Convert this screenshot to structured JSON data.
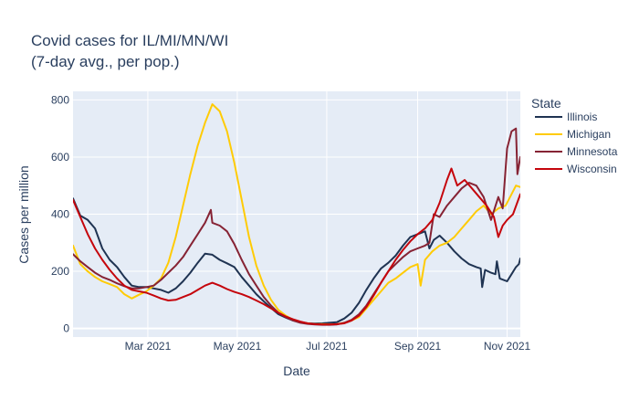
{
  "chart_data": {
    "type": "line",
    "title_lines": [
      "Covid cases for IL/MI/MN/WI",
      "(7-day avg., per pop.)"
    ],
    "xlabel": "Date",
    "ylabel": "Cases per million",
    "xlim": [
      "2021-01-09",
      "2021-11-10"
    ],
    "ylim": [
      -30,
      830
    ],
    "x_ticks": [
      {
        "date": "2021-03-01",
        "label": "Mar 2021"
      },
      {
        "date": "2021-05-01",
        "label": "May 2021"
      },
      {
        "date": "2021-07-01",
        "label": "Jul 2021"
      },
      {
        "date": "2021-09-01",
        "label": "Sep 2021"
      },
      {
        "date": "2021-11-01",
        "label": "Nov 2021"
      }
    ],
    "y_ticks": [
      0,
      200,
      400,
      600,
      800
    ],
    "legend": {
      "title": "State",
      "position": "right"
    },
    "grid": true,
    "plot_background": "#e5ecf6",
    "series": [
      {
        "name": "Illinois",
        "color": "#1f3352",
        "points": [
          [
            "2021-01-09",
            455
          ],
          [
            "2021-01-14",
            395
          ],
          [
            "2021-01-19",
            380
          ],
          [
            "2021-01-24",
            350
          ],
          [
            "2021-01-29",
            280
          ],
          [
            "2021-02-03",
            240
          ],
          [
            "2021-02-08",
            215
          ],
          [
            "2021-02-13",
            180
          ],
          [
            "2021-02-18",
            150
          ],
          [
            "2021-02-23",
            145
          ],
          [
            "2021-02-28",
            145
          ],
          [
            "2021-03-05",
            140
          ],
          [
            "2021-03-10",
            135
          ],
          [
            "2021-03-15",
            125
          ],
          [
            "2021-03-20",
            140
          ],
          [
            "2021-03-25",
            165
          ],
          [
            "2021-03-30",
            195
          ],
          [
            "2021-04-04",
            230
          ],
          [
            "2021-04-09",
            262
          ],
          [
            "2021-04-14",
            258
          ],
          [
            "2021-04-19",
            240
          ],
          [
            "2021-04-24",
            228
          ],
          [
            "2021-04-29",
            215
          ],
          [
            "2021-05-04",
            180
          ],
          [
            "2021-05-09",
            150
          ],
          [
            "2021-05-14",
            120
          ],
          [
            "2021-05-19",
            95
          ],
          [
            "2021-05-24",
            72
          ],
          [
            "2021-05-29",
            50
          ],
          [
            "2021-06-03",
            38
          ],
          [
            "2021-06-08",
            28
          ],
          [
            "2021-06-13",
            22
          ],
          [
            "2021-06-18",
            18
          ],
          [
            "2021-06-23",
            17
          ],
          [
            "2021-06-28",
            18
          ],
          [
            "2021-07-03",
            20
          ],
          [
            "2021-07-08",
            22
          ],
          [
            "2021-07-13",
            35
          ],
          [
            "2021-07-18",
            55
          ],
          [
            "2021-07-23",
            90
          ],
          [
            "2021-07-28",
            135
          ],
          [
            "2021-08-02",
            175
          ],
          [
            "2021-08-07",
            210
          ],
          [
            "2021-08-12",
            230
          ],
          [
            "2021-08-17",
            255
          ],
          [
            "2021-08-22",
            290
          ],
          [
            "2021-08-27",
            320
          ],
          [
            "2021-09-01",
            330
          ],
          [
            "2021-09-06",
            340
          ],
          [
            "2021-09-09",
            280
          ],
          [
            "2021-09-12",
            310
          ],
          [
            "2021-09-16",
            325
          ],
          [
            "2021-09-21",
            300
          ],
          [
            "2021-09-26",
            270
          ],
          [
            "2021-10-01",
            245
          ],
          [
            "2021-10-06",
            225
          ],
          [
            "2021-10-11",
            215
          ],
          [
            "2021-10-14",
            210
          ],
          [
            "2021-10-15",
            145
          ],
          [
            "2021-10-17",
            205
          ],
          [
            "2021-10-21",
            195
          ],
          [
            "2021-10-24",
            190
          ],
          [
            "2021-10-25",
            235
          ],
          [
            "2021-10-27",
            175
          ],
          [
            "2021-11-01",
            165
          ],
          [
            "2021-11-04",
            190
          ],
          [
            "2021-11-07",
            215
          ],
          [
            "2021-11-09",
            225
          ],
          [
            "2021-11-10",
            245
          ]
        ]
      },
      {
        "name": "Michigan",
        "color": "#ffcb05",
        "points": [
          [
            "2021-01-09",
            290
          ],
          [
            "2021-01-14",
            225
          ],
          [
            "2021-01-19",
            200
          ],
          [
            "2021-01-24",
            180
          ],
          [
            "2021-01-29",
            165
          ],
          [
            "2021-02-03",
            155
          ],
          [
            "2021-02-08",
            145
          ],
          [
            "2021-02-13",
            120
          ],
          [
            "2021-02-18",
            105
          ],
          [
            "2021-02-23",
            118
          ],
          [
            "2021-02-28",
            130
          ],
          [
            "2021-03-05",
            150
          ],
          [
            "2021-03-10",
            175
          ],
          [
            "2021-03-15",
            230
          ],
          [
            "2021-03-20",
            320
          ],
          [
            "2021-03-25",
            430
          ],
          [
            "2021-03-30",
            540
          ],
          [
            "2021-04-04",
            640
          ],
          [
            "2021-04-09",
            720
          ],
          [
            "2021-04-14",
            785
          ],
          [
            "2021-04-19",
            760
          ],
          [
            "2021-04-24",
            690
          ],
          [
            "2021-04-29",
            580
          ],
          [
            "2021-05-04",
            450
          ],
          [
            "2021-05-09",
            320
          ],
          [
            "2021-05-14",
            220
          ],
          [
            "2021-05-19",
            150
          ],
          [
            "2021-05-24",
            100
          ],
          [
            "2021-05-29",
            65
          ],
          [
            "2021-06-03",
            45
          ],
          [
            "2021-06-08",
            30
          ],
          [
            "2021-06-13",
            22
          ],
          [
            "2021-06-18",
            18
          ],
          [
            "2021-06-23",
            15
          ],
          [
            "2021-06-28",
            15
          ],
          [
            "2021-07-03",
            14
          ],
          [
            "2021-07-08",
            15
          ],
          [
            "2021-07-13",
            20
          ],
          [
            "2021-07-18",
            28
          ],
          [
            "2021-07-23",
            40
          ],
          [
            "2021-07-28",
            70
          ],
          [
            "2021-08-02",
            100
          ],
          [
            "2021-08-07",
            130
          ],
          [
            "2021-08-12",
            160
          ],
          [
            "2021-08-17",
            175
          ],
          [
            "2021-08-22",
            195
          ],
          [
            "2021-08-27",
            215
          ],
          [
            "2021-09-01",
            225
          ],
          [
            "2021-09-03",
            150
          ],
          [
            "2021-09-06",
            240
          ],
          [
            "2021-09-11",
            270
          ],
          [
            "2021-09-16",
            290
          ],
          [
            "2021-09-21",
            300
          ],
          [
            "2021-09-26",
            320
          ],
          [
            "2021-10-01",
            350
          ],
          [
            "2021-10-06",
            380
          ],
          [
            "2021-10-11",
            410
          ],
          [
            "2021-10-16",
            430
          ],
          [
            "2021-10-21",
            400
          ],
          [
            "2021-10-26",
            420
          ],
          [
            "2021-10-31",
            430
          ],
          [
            "2021-11-03",
            460
          ],
          [
            "2021-11-07",
            500
          ],
          [
            "2021-11-10",
            495
          ]
        ]
      },
      {
        "name": "Minnesota",
        "color": "#862334",
        "points": [
          [
            "2021-01-09",
            260
          ],
          [
            "2021-01-14",
            235
          ],
          [
            "2021-01-19",
            215
          ],
          [
            "2021-01-24",
            195
          ],
          [
            "2021-01-29",
            180
          ],
          [
            "2021-02-03",
            170
          ],
          [
            "2021-02-08",
            158
          ],
          [
            "2021-02-13",
            148
          ],
          [
            "2021-02-18",
            140
          ],
          [
            "2021-02-23",
            140
          ],
          [
            "2021-02-28",
            145
          ],
          [
            "2021-03-05",
            150
          ],
          [
            "2021-03-10",
            170
          ],
          [
            "2021-03-15",
            195
          ],
          [
            "2021-03-20",
            220
          ],
          [
            "2021-03-25",
            250
          ],
          [
            "2021-03-30",
            290
          ],
          [
            "2021-04-04",
            330
          ],
          [
            "2021-04-09",
            370
          ],
          [
            "2021-04-13",
            415
          ],
          [
            "2021-04-14",
            370
          ],
          [
            "2021-04-19",
            360
          ],
          [
            "2021-04-24",
            340
          ],
          [
            "2021-04-29",
            295
          ],
          [
            "2021-05-04",
            240
          ],
          [
            "2021-05-09",
            190
          ],
          [
            "2021-05-14",
            150
          ],
          [
            "2021-05-19",
            110
          ],
          [
            "2021-05-24",
            80
          ],
          [
            "2021-05-29",
            55
          ],
          [
            "2021-06-03",
            40
          ],
          [
            "2021-06-08",
            28
          ],
          [
            "2021-06-13",
            20
          ],
          [
            "2021-06-18",
            16
          ],
          [
            "2021-06-23",
            14
          ],
          [
            "2021-06-28",
            13
          ],
          [
            "2021-07-03",
            13
          ],
          [
            "2021-07-08",
            14
          ],
          [
            "2021-07-13",
            20
          ],
          [
            "2021-07-18",
            30
          ],
          [
            "2021-07-23",
            50
          ],
          [
            "2021-07-28",
            80
          ],
          [
            "2021-08-02",
            120
          ],
          [
            "2021-08-07",
            160
          ],
          [
            "2021-08-12",
            200
          ],
          [
            "2021-08-17",
            225
          ],
          [
            "2021-08-22",
            250
          ],
          [
            "2021-08-27",
            270
          ],
          [
            "2021-09-01",
            280
          ],
          [
            "2021-09-06",
            290
          ],
          [
            "2021-09-09",
            300
          ],
          [
            "2021-09-12",
            400
          ],
          [
            "2021-09-16",
            390
          ],
          [
            "2021-09-21",
            430
          ],
          [
            "2021-09-26",
            460
          ],
          [
            "2021-10-01",
            490
          ],
          [
            "2021-10-06",
            510
          ],
          [
            "2021-10-11",
            500
          ],
          [
            "2021-10-16",
            460
          ],
          [
            "2021-10-21",
            380
          ],
          [
            "2021-10-26",
            460
          ],
          [
            "2021-10-29",
            420
          ],
          [
            "2021-11-01",
            630
          ],
          [
            "2021-11-04",
            690
          ],
          [
            "2021-11-07",
            700
          ],
          [
            "2021-11-08",
            540
          ],
          [
            "2021-11-10",
            600
          ]
        ]
      },
      {
        "name": "Wisconsin",
        "color": "#c5050c",
        "points": [
          [
            "2021-01-09",
            450
          ],
          [
            "2021-01-14",
            390
          ],
          [
            "2021-01-19",
            330
          ],
          [
            "2021-01-24",
            280
          ],
          [
            "2021-01-29",
            240
          ],
          [
            "2021-02-03",
            205
          ],
          [
            "2021-02-08",
            175
          ],
          [
            "2021-02-13",
            150
          ],
          [
            "2021-02-18",
            135
          ],
          [
            "2021-02-23",
            130
          ],
          [
            "2021-02-28",
            125
          ],
          [
            "2021-03-05",
            115
          ],
          [
            "2021-03-10",
            105
          ],
          [
            "2021-03-15",
            98
          ],
          [
            "2021-03-20",
            100
          ],
          [
            "2021-03-25",
            110
          ],
          [
            "2021-03-30",
            120
          ],
          [
            "2021-04-04",
            135
          ],
          [
            "2021-04-09",
            150
          ],
          [
            "2021-04-14",
            160
          ],
          [
            "2021-04-19",
            150
          ],
          [
            "2021-04-24",
            138
          ],
          [
            "2021-04-29",
            128
          ],
          [
            "2021-05-04",
            120
          ],
          [
            "2021-05-09",
            110
          ],
          [
            "2021-05-14",
            98
          ],
          [
            "2021-05-19",
            85
          ],
          [
            "2021-05-24",
            70
          ],
          [
            "2021-05-29",
            55
          ],
          [
            "2021-06-03",
            42
          ],
          [
            "2021-06-08",
            32
          ],
          [
            "2021-06-13",
            24
          ],
          [
            "2021-06-18",
            18
          ],
          [
            "2021-06-23",
            15
          ],
          [
            "2021-06-28",
            14
          ],
          [
            "2021-07-03",
            14
          ],
          [
            "2021-07-08",
            15
          ],
          [
            "2021-07-13",
            18
          ],
          [
            "2021-07-18",
            28
          ],
          [
            "2021-07-23",
            45
          ],
          [
            "2021-07-28",
            75
          ],
          [
            "2021-08-02",
            115
          ],
          [
            "2021-08-07",
            160
          ],
          [
            "2021-08-12",
            200
          ],
          [
            "2021-08-17",
            240
          ],
          [
            "2021-08-22",
            275
          ],
          [
            "2021-08-27",
            305
          ],
          [
            "2021-09-01",
            330
          ],
          [
            "2021-09-06",
            350
          ],
          [
            "2021-09-11",
            380
          ],
          [
            "2021-09-16",
            440
          ],
          [
            "2021-09-21",
            520
          ],
          [
            "2021-09-24",
            560
          ],
          [
            "2021-09-28",
            500
          ],
          [
            "2021-10-03",
            520
          ],
          [
            "2021-10-08",
            490
          ],
          [
            "2021-10-13",
            460
          ],
          [
            "2021-10-18",
            430
          ],
          [
            "2021-10-23",
            390
          ],
          [
            "2021-10-26",
            320
          ],
          [
            "2021-10-29",
            360
          ],
          [
            "2021-11-01",
            380
          ],
          [
            "2021-11-05",
            400
          ],
          [
            "2021-11-10",
            470
          ]
        ]
      }
    ]
  }
}
